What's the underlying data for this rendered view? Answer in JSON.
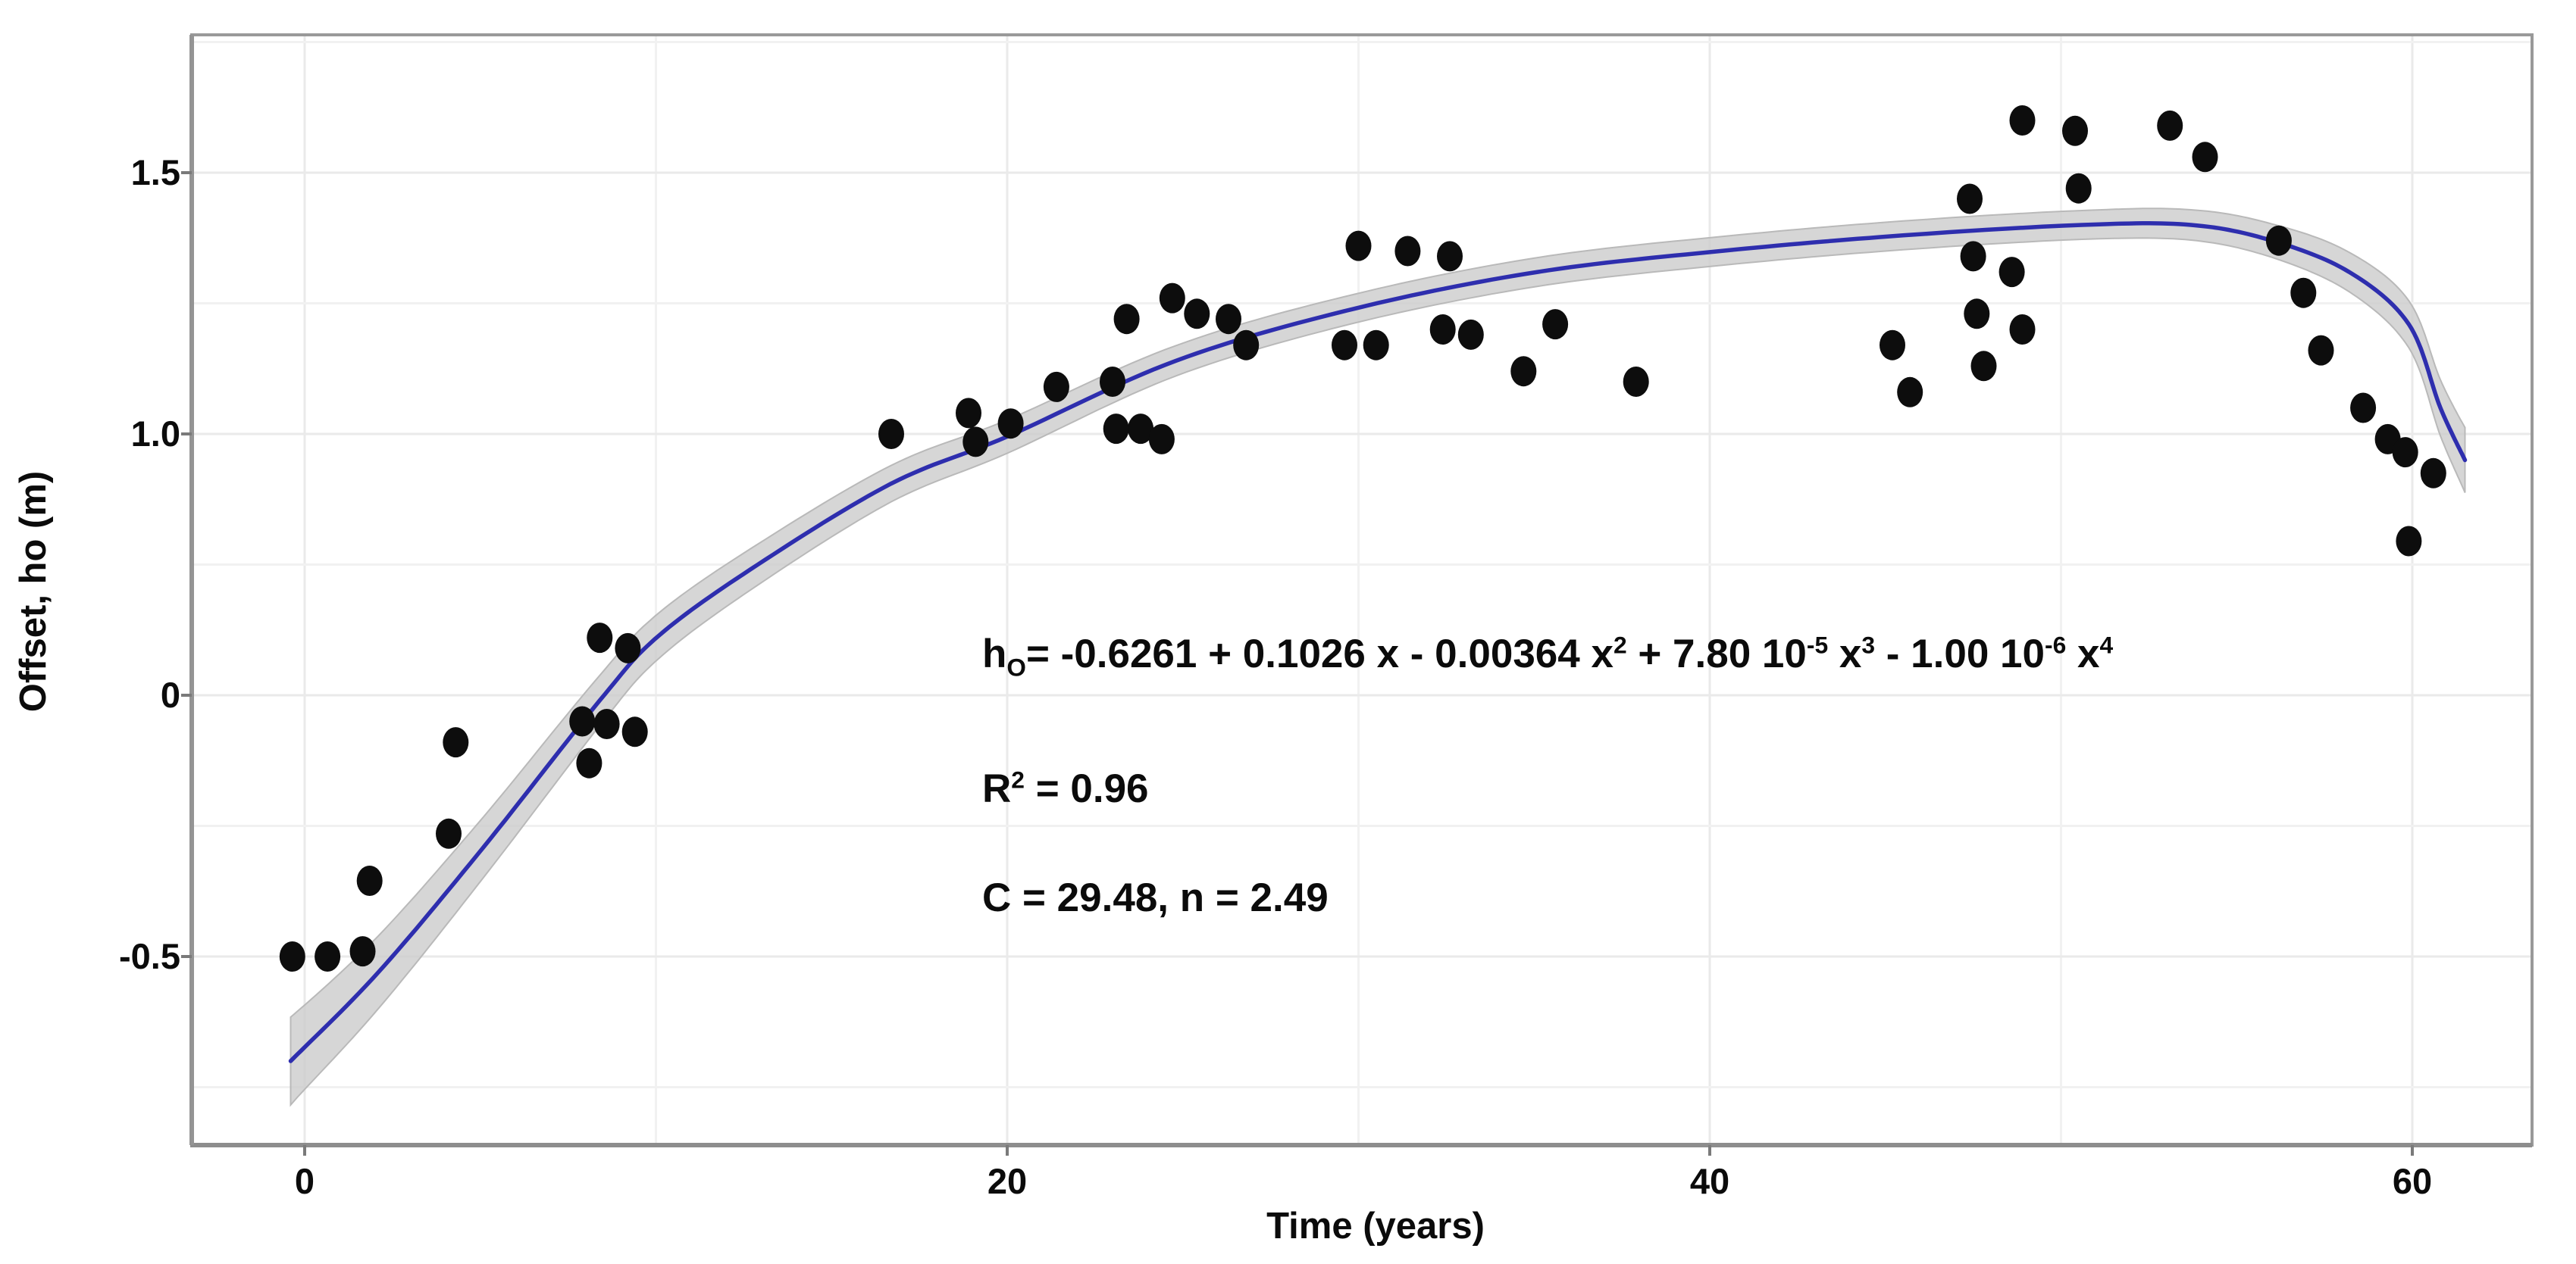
{
  "annotation": {
    "equation_segments": [
      {
        "t": "h"
      },
      {
        "sub": "O"
      },
      {
        "t": "= -0.6261 + 0.1026 x - 0.00364 x"
      },
      {
        "sup": "2"
      },
      {
        "t": " + 7.80 10"
      },
      {
        "sup": "-5"
      },
      {
        "t": " x"
      },
      {
        "sup": "3"
      },
      {
        "t": " - 1.00 10"
      },
      {
        "sup": "-6"
      },
      {
        "t": " x"
      },
      {
        "sup": "4"
      }
    ],
    "r2_segments": [
      {
        "t": "R"
      },
      {
        "sup": "2"
      },
      {
        "t": " = 0.96"
      }
    ],
    "c_line": "C = 29.48, n = 2.49"
  },
  "chart_data": {
    "type": "scatter",
    "title": "",
    "xlabel": "Time (years)",
    "ylabel": "Offset, ho (m)",
    "x_ticks": [
      {
        "label": "0",
        "value": 0
      },
      {
        "label": "20",
        "value": 20
      },
      {
        "label": "40",
        "value": 40
      },
      {
        "label": "60",
        "value": 60
      }
    ],
    "y_ticks": [
      {
        "label": "1.5",
        "value": 1.5
      },
      {
        "label": "1.0",
        "value": 1.0
      },
      {
        "label": "0",
        "value": 0
      },
      {
        "label": "-0.5",
        "value": -0.5
      }
    ],
    "grid": true,
    "legend": false,
    "xlim_years": [
      -3.2,
      63.4
    ],
    "marker_color": "#0d0d0d",
    "fit_color": "#2e2eae",
    "band_color": "#cccccc",
    "points": [
      {
        "x": -0.35,
        "y": -0.5
      },
      {
        "x": 0.65,
        "y": -0.5
      },
      {
        "x": 1.65,
        "y": -0.49
      },
      {
        "x": 1.85,
        "y": -0.355
      },
      {
        "x": 4.1,
        "y": -0.265
      },
      {
        "x": 4.3,
        "y": -0.09
      },
      {
        "x": 7.9,
        "y": -0.05
      },
      {
        "x": 8.6,
        "y": -0.055
      },
      {
        "x": 9.4,
        "y": -0.07
      },
      {
        "x": 8.1,
        "y": -0.13
      },
      {
        "x": 8.4,
        "y": 0.22
      },
      {
        "x": 9.2,
        "y": 0.18
      },
      {
        "x": 16.7,
        "y": 1.0
      },
      {
        "x": 18.9,
        "y": 1.04
      },
      {
        "x": 19.1,
        "y": 0.97
      },
      {
        "x": 20.1,
        "y": 1.02
      },
      {
        "x": 21.4,
        "y": 1.09
      },
      {
        "x": 23.0,
        "y": 1.1
      },
      {
        "x": 23.4,
        "y": 1.22
      },
      {
        "x": 23.1,
        "y": 1.01
      },
      {
        "x": 23.8,
        "y": 1.01
      },
      {
        "x": 24.4,
        "y": 0.98
      },
      {
        "x": 24.7,
        "y": 1.26
      },
      {
        "x": 25.4,
        "y": 1.23
      },
      {
        "x": 26.3,
        "y": 1.22
      },
      {
        "x": 26.8,
        "y": 1.17
      },
      {
        "x": 30.0,
        "y": 1.36
      },
      {
        "x": 31.4,
        "y": 1.35
      },
      {
        "x": 32.6,
        "y": 1.34
      },
      {
        "x": 29.6,
        "y": 1.17
      },
      {
        "x": 30.5,
        "y": 1.17
      },
      {
        "x": 32.4,
        "y": 1.2
      },
      {
        "x": 33.2,
        "y": 1.19
      },
      {
        "x": 35.6,
        "y": 1.21
      },
      {
        "x": 34.7,
        "y": 1.12
      },
      {
        "x": 37.9,
        "y": 1.1
      },
      {
        "x": 45.2,
        "y": 1.17
      },
      {
        "x": 45.7,
        "y": 1.08
      },
      {
        "x": 47.4,
        "y": 1.45
      },
      {
        "x": 47.5,
        "y": 1.34
      },
      {
        "x": 47.6,
        "y": 1.23
      },
      {
        "x": 47.8,
        "y": 1.13
      },
      {
        "x": 48.6,
        "y": 1.31
      },
      {
        "x": 48.9,
        "y": 1.2
      },
      {
        "x": 48.9,
        "y": 1.6
      },
      {
        "x": 50.4,
        "y": 1.58
      },
      {
        "x": 50.5,
        "y": 1.47
      },
      {
        "x": 53.1,
        "y": 1.59
      },
      {
        "x": 54.1,
        "y": 1.53
      },
      {
        "x": 56.2,
        "y": 1.37
      },
      {
        "x": 56.9,
        "y": 1.27
      },
      {
        "x": 57.4,
        "y": 1.16
      },
      {
        "x": 58.6,
        "y": 1.05
      },
      {
        "x": 59.3,
        "y": 0.98
      },
      {
        "x": 59.8,
        "y": 0.93
      },
      {
        "x": 60.6,
        "y": 0.85
      },
      {
        "x": 59.9,
        "y": 0.59
      }
    ],
    "fit": {
      "label": "4th-order polynomial fit with confidence band",
      "equation": "hO = -0.6261 + 0.1026 x - 0.00364 x^2 + 7.80e-5 x^3 - 1.00e-6 x^4",
      "r_squared": 0.96,
      "C": 29.48,
      "n": 2.49,
      "curve_points": [
        {
          "x": -0.4,
          "y": -0.7,
          "w": 58
        },
        {
          "x": 2.1,
          "y": -0.53,
          "w": 48
        },
        {
          "x": 5.1,
          "y": -0.29,
          "w": 40
        },
        {
          "x": 8.4,
          "y": -0.01,
          "w": 33
        },
        {
          "x": 10.1,
          "y": 0.23,
          "w": 30
        },
        {
          "x": 12.9,
          "y": 0.5,
          "w": 27
        },
        {
          "x": 16.7,
          "y": 0.81,
          "w": 24
        },
        {
          "x": 20.0,
          "y": 0.99,
          "w": 22
        },
        {
          "x": 24.8,
          "y": 1.14,
          "w": 20
        },
        {
          "x": 29.9,
          "y": 1.24,
          "w": 19
        },
        {
          "x": 35.1,
          "y": 1.31,
          "w": 19
        },
        {
          "x": 40.3,
          "y": 1.35,
          "w": 19
        },
        {
          "x": 45.5,
          "y": 1.38,
          "w": 19
        },
        {
          "x": 50.6,
          "y": 1.4,
          "w": 19
        },
        {
          "x": 53.7,
          "y": 1.4,
          "w": 20
        },
        {
          "x": 56.0,
          "y": 1.37,
          "w": 22
        },
        {
          "x": 58.2,
          "y": 1.31,
          "w": 26
        },
        {
          "x": 59.9,
          "y": 1.21,
          "w": 31
        },
        {
          "x": 60.8,
          "y": 1.05,
          "w": 37
        },
        {
          "x": 61.5,
          "y": 0.9,
          "w": 43
        }
      ]
    }
  }
}
